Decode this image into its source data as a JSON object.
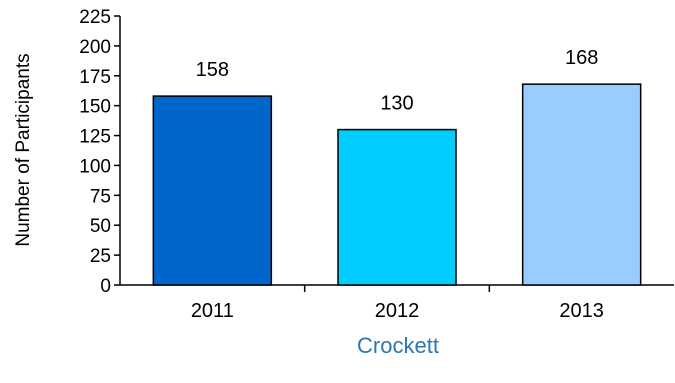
{
  "chart_data": {
    "type": "bar",
    "categories": [
      "2011",
      "2012",
      "2013"
    ],
    "values": [
      158,
      130,
      168
    ],
    "data_labels": [
      "158",
      "130",
      "168"
    ],
    "title": "",
    "xlabel": "Crockett",
    "ylabel": "Number of Participants",
    "ylim": [
      0,
      225
    ],
    "yticks": [
      "0",
      "25",
      "50",
      "75",
      "100",
      "125",
      "150",
      "175",
      "200",
      "225"
    ],
    "grid": false,
    "legend": "none",
    "bar_colors": [
      "#0066cc",
      "#00ccff",
      "#99ccff"
    ],
    "bar_outline": "#000000",
    "xlabel_color": "#2e75b6"
  }
}
